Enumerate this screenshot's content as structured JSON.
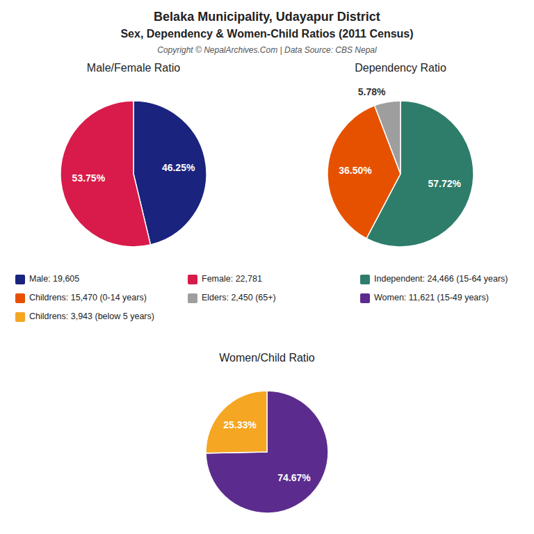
{
  "title": "Belaka Municipality, Udayapur District",
  "subtitle": "Sex, Dependency & Women-Child Ratios (2011 Census)",
  "annotations": [
    "Copyright © NepalArchives.Com | Data Source: CBS Nepal"
  ],
  "chart_data": [
    {
      "type": "pie",
      "title": "Male/Female Ratio",
      "categories": [
        "Male: 19,605",
        "Female: 22,781"
      ],
      "values": [
        46.25,
        53.75
      ],
      "value_labels": [
        "46.25%",
        "53.75%"
      ],
      "colors": [
        "#1a237e",
        "#d81b4a"
      ],
      "data_labels": true,
      "legend": "bottom"
    },
    {
      "type": "pie",
      "title": "Dependency Ratio",
      "categories": [
        "Independent: 24,466 (15-64 years)",
        "Childrens: 15,470 (0-14 years)",
        "Elders: 2,450 (65+)"
      ],
      "values": [
        57.72,
        36.5,
        5.78
      ],
      "value_labels": [
        "57.72%",
        "36.50%",
        "5.78%"
      ],
      "colors": [
        "#2e7d6b",
        "#e65100",
        "#9e9e9e"
      ],
      "data_labels": true,
      "legend": "bottom"
    },
    {
      "type": "pie",
      "title": "Women/Child Ratio",
      "categories": [
        "Women: 11,621 (15-49 years)",
        "Childrens: 3,943 (below 5 years)"
      ],
      "values": [
        74.67,
        25.33
      ],
      "value_labels": [
        "74.67%",
        "25.33%"
      ],
      "colors": [
        "#5b2c8d",
        "#f5a623"
      ],
      "data_labels": true,
      "legend": "top"
    }
  ]
}
